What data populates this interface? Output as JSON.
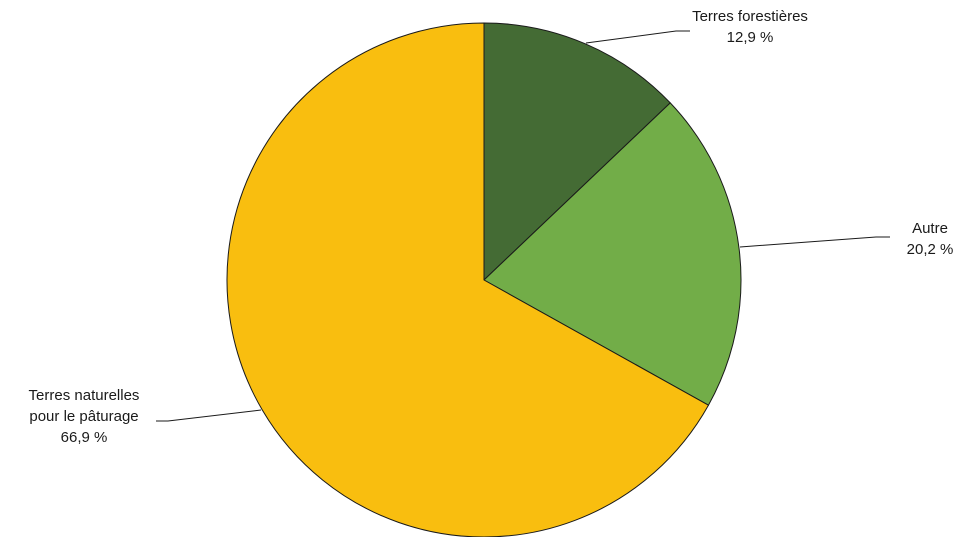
{
  "chart_data": {
    "type": "pie",
    "title": "",
    "slices": [
      {
        "label_lines": [
          "Terres forestières"
        ],
        "value": 12.9,
        "value_label": "12,9 %",
        "color": "#446b34"
      },
      {
        "label_lines": [
          "Autre"
        ],
        "value": 20.2,
        "value_label": "20,2 %",
        "color": "#72ad48"
      },
      {
        "label_lines": [
          "Terres naturelles",
          "pour le pâturage"
        ],
        "value": 66.9,
        "value_label": "66,9 %",
        "color": "#f9be0f"
      }
    ],
    "start_angle": "12 o'clock",
    "direction": "clockwise",
    "outline_color": "#1a1a1a",
    "legend": "none"
  }
}
